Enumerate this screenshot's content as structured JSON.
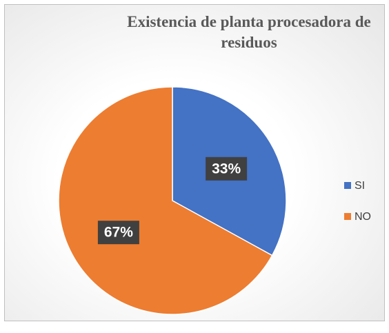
{
  "chart_data": {
    "type": "pie",
    "title": "Existencia de planta procesadora de residuos",
    "categories": [
      "SI",
      "NO"
    ],
    "values": [
      33,
      67
    ],
    "value_labels": [
      "33%",
      "67%"
    ],
    "colors": [
      "#4472c4",
      "#ed7d31"
    ],
    "legend": "right"
  }
}
